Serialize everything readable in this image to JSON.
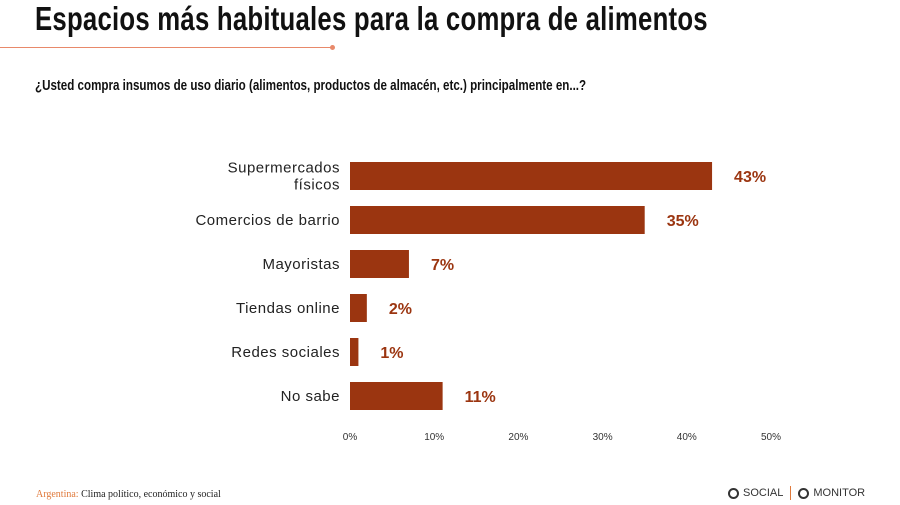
{
  "title": "Espacios más habituales para la compra de alimentos",
  "footer": {
    "country": "Argentina:",
    "text": "Clima político, económico y social"
  },
  "logo": {
    "left": "SOCIAL",
    "right": "MONITOR"
  },
  "colors": {
    "bar": "#9b3510",
    "label": "#9b3510",
    "accent": "#e8896a"
  },
  "chart_data": {
    "type": "bar",
    "orientation": "horizontal",
    "title": "¿Usted compra insumos de uso diario (alimentos, productos de almacén, etc.) principalmente en...?",
    "categories": [
      [
        "Supermercados",
        "físicos"
      ],
      [
        "Comercios de barrio"
      ],
      [
        "Mayoristas"
      ],
      [
        "Tiendas online"
      ],
      [
        "Redes sociales"
      ],
      [
        "No sabe"
      ]
    ],
    "values": [
      43,
      35,
      7,
      2,
      1,
      11
    ],
    "data_labels": [
      "43%",
      "35%",
      "7%",
      "2%",
      "1%",
      "11%"
    ],
    "xlim": [
      0,
      50
    ],
    "x_ticks": [
      "0%",
      "10%",
      "20%",
      "30%",
      "40%",
      "50%"
    ],
    "grid": false
  }
}
